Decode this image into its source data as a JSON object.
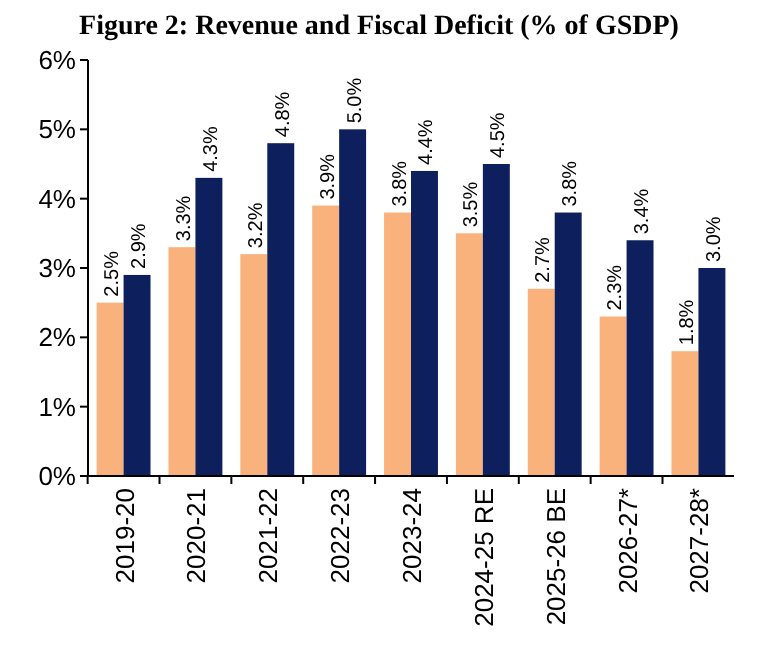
{
  "chart_data": {
    "type": "bar",
    "title": "Figure 2: Revenue and Fiscal Deficit (% of GSDP)",
    "categories": [
      "2019-20",
      "2020-21",
      "2021-22",
      "2022-23",
      "2023-24",
      "2024-25 RE",
      "2025-26 BE",
      "2026-27*",
      "2027-28*"
    ],
    "series": [
      {
        "color": "#f9b27c",
        "values": [
          2.5,
          3.3,
          3.2,
          3.9,
          3.8,
          3.5,
          2.7,
          2.3,
          1.8
        ],
        "value_labels": [
          "2.5%",
          "3.3%",
          "3.2%",
          "3.9%",
          "3.8%",
          "3.5%",
          "2.7%",
          "2.3%",
          "1.8%"
        ]
      },
      {
        "color": "#0d1f5c",
        "values": [
          2.9,
          4.3,
          4.8,
          5.0,
          4.4,
          4.5,
          3.8,
          3.4,
          3.0
        ],
        "value_labels": [
          "2.9%",
          "4.3%",
          "4.8%",
          "5.0%",
          "4.4%",
          "4.5%",
          "3.8%",
          "3.4%",
          "3.0%"
        ]
      }
    ],
    "ylim": [
      0,
      6
    ],
    "yticks": [
      {
        "value": 0,
        "label": "0%"
      },
      {
        "value": 1,
        "label": "1%"
      },
      {
        "value": 2,
        "label": "2%"
      },
      {
        "value": 3,
        "label": "3%"
      },
      {
        "value": 4,
        "label": "4%"
      },
      {
        "value": 5,
        "label": "5%"
      },
      {
        "value": 6,
        "label": "6%"
      }
    ],
    "grid": false
  }
}
